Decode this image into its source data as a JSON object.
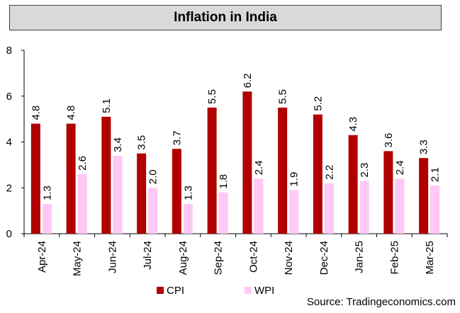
{
  "chart_data": {
    "type": "bar",
    "title": "Inflation in India",
    "categories": [
      "Apr-24",
      "May-24",
      "Jun-24",
      "Jul-24",
      "Aug-24",
      "Sep-24",
      "Oct-24",
      "Nov-24",
      "Dec-24",
      "Jan-25",
      "Feb-25",
      "Mar-25"
    ],
    "series": [
      {
        "name": "CPI",
        "color": "#b00000",
        "values": [
          4.8,
          4.8,
          5.1,
          3.5,
          3.7,
          5.5,
          6.2,
          5.5,
          5.2,
          4.3,
          3.6,
          3.3
        ],
        "labels": [
          "4.8",
          "4.8",
          "5.1",
          "3.5",
          "3.7",
          "5.5",
          "6.2",
          "5.5",
          "5.2",
          "4.3",
          "3.6",
          "3.3"
        ]
      },
      {
        "name": "WPI",
        "color": "#ffc8f5",
        "values": [
          1.3,
          2.6,
          3.4,
          2.0,
          1.3,
          1.8,
          2.4,
          1.9,
          2.2,
          2.3,
          2.4,
          2.1
        ],
        "labels": [
          "1.3",
          "2.6",
          "3.4",
          "2.0",
          "1.3",
          "1.8",
          "2.4",
          "1.9",
          "2.2",
          "2.3",
          "2.4",
          "2.1"
        ]
      }
    ],
    "yticks": [
      "0",
      "2",
      "4",
      "6",
      "8"
    ],
    "ylim": [
      0,
      8
    ],
    "xlabel": "",
    "ylabel": "",
    "legend_position": "bottom"
  },
  "source": "Source: Tradingeconomics.com"
}
